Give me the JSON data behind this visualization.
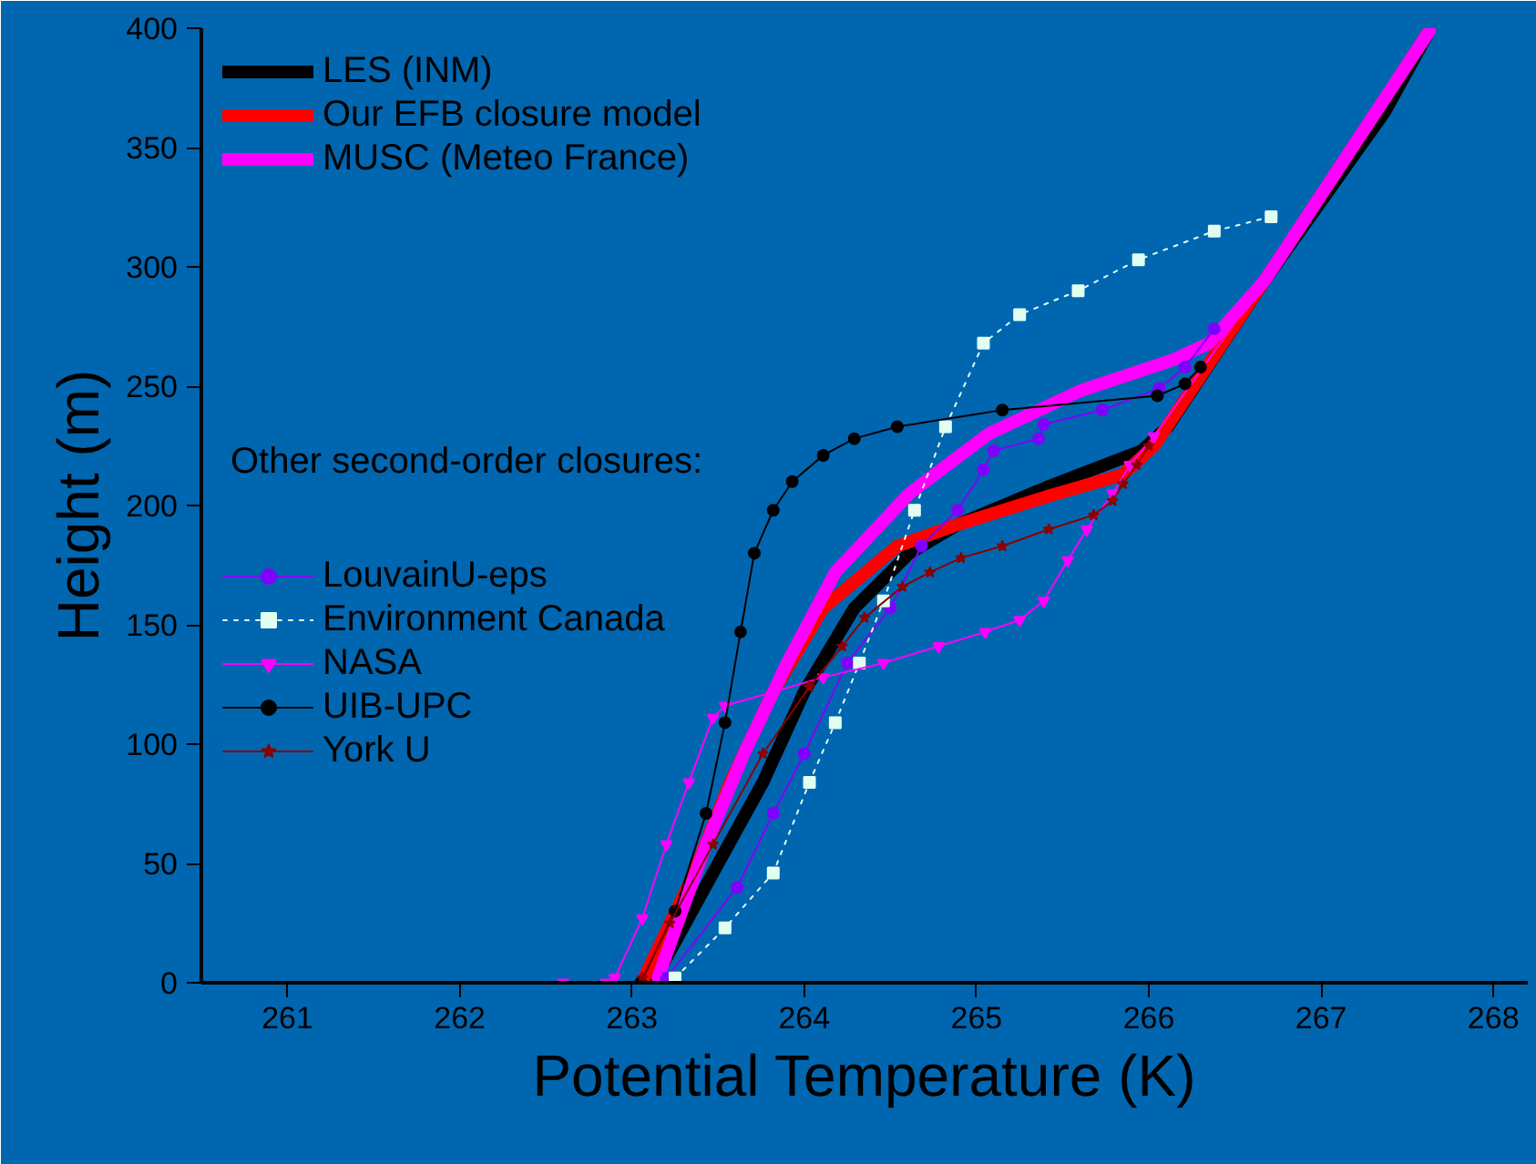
{
  "chart_data": {
    "type": "line",
    "xlabel": "Potential Temperature (K)",
    "ylabel": "Height (m)",
    "xlim": [
      260.5,
      268.2
    ],
    "ylim": [
      0,
      400
    ],
    "xticks": [
      261,
      262,
      263,
      264,
      265,
      266,
      267,
      268
    ],
    "yticks": [
      0,
      50,
      100,
      150,
      200,
      250,
      300,
      350,
      400
    ],
    "grid": false,
    "legend": "top left",
    "annotations": [
      "Other second-order closures:"
    ],
    "series": [
      {
        "name": "LES (INM)",
        "color": "#000000",
        "marker": "none",
        "line_style": "solid",
        "x": [
          263.12,
          263.47,
          263.76,
          264.0,
          264.29,
          264.61,
          264.89,
          265.42,
          265.96,
          266.11,
          266.67,
          267.37,
          267.63
        ],
        "values": [
          0,
          46,
          84,
          122,
          157,
          180,
          192,
          208,
          223,
          233,
          294,
          365,
          399
        ]
      },
      {
        "name": "Our EFB closure model",
        "color": "#ff0000",
        "marker": "none",
        "line_style": "solid",
        "x": [
          263.07,
          263.36,
          263.57,
          263.82,
          264.11,
          264.54,
          264.89,
          265.42,
          265.85,
          266.03,
          266.67,
          267.63
        ],
        "values": [
          2,
          46,
          84,
          122,
          157,
          183,
          192,
          204,
          213,
          225,
          294,
          399
        ]
      },
      {
        "name": "MUSC (Meteo France)",
        "color": "#ff00ff",
        "marker": "none",
        "line_style": "solid",
        "x": [
          263.15,
          263.43,
          263.65,
          263.9,
          264.18,
          264.61,
          265.07,
          265.6,
          266.14,
          266.35,
          266.67,
          267.63
        ],
        "values": [
          2,
          58,
          96,
          134,
          172,
          205,
          230,
          248,
          261,
          268,
          294,
          399
        ]
      },
      {
        "name": "LouvainU-eps",
        "color": "#7f00ff",
        "marker": "circle",
        "line_style": "solid",
        "x": [
          263.2,
          263.61,
          263.82,
          264.0,
          264.25,
          264.5,
          264.68,
          264.89,
          265.04,
          265.1,
          265.36,
          265.39,
          265.73,
          266.06,
          266.21,
          266.38
        ],
        "values": [
          2,
          40,
          71,
          96,
          134,
          157,
          183,
          198,
          215,
          223,
          228,
          234,
          240,
          249,
          258,
          274
        ]
      },
      {
        "name": "Environment Canada",
        "color": "#e0fff0",
        "marker": "square",
        "line_style": "dotted",
        "x": [
          263.25,
          263.54,
          263.82,
          264.03,
          264.18,
          264.32,
          264.46,
          264.64,
          264.82,
          265.04,
          265.25,
          265.59,
          265.94,
          266.38,
          266.71
        ],
        "values": [
          2,
          23,
          46,
          84,
          109,
          134,
          160,
          198,
          233,
          268,
          280,
          290,
          303,
          315,
          321
        ]
      },
      {
        "name": "NASA",
        "color": "#ff00ff",
        "marker": "triangle",
        "line_style": "solid",
        "x": [
          262.6,
          262.85,
          262.9,
          263.06,
          263.2,
          263.33,
          263.47,
          263.54,
          264.11,
          264.46,
          264.78,
          265.05,
          265.25,
          265.39,
          265.53,
          265.64,
          265.79,
          265.89,
          266.03,
          266.67,
          267.63
        ],
        "values": [
          0,
          0,
          2,
          27,
          58,
          84,
          111,
          116,
          128,
          134,
          141,
          147,
          152,
          160,
          177,
          190,
          205,
          217,
          229,
          294,
          399
        ]
      },
      {
        "name": "UIB-UPC",
        "color": "#000000",
        "marker": "circle",
        "line_style": "solid",
        "x": [
          263.05,
          263.25,
          263.43,
          263.54,
          263.63,
          263.71,
          263.82,
          263.93,
          264.11,
          264.29,
          264.54,
          265.15,
          266.05,
          266.21,
          266.3
        ],
        "values": [
          0,
          30,
          71,
          109,
          147,
          180,
          198,
          210,
          221,
          228,
          233,
          240,
          246,
          251,
          258
        ]
      },
      {
        "name": "York U",
        "color": "#8b0000",
        "marker": "star",
        "line_style": "solid",
        "x": [
          263.06,
          263.22,
          263.47,
          263.76,
          264.03,
          264.22,
          264.35,
          264.57,
          264.73,
          264.91,
          265.15,
          265.42,
          265.68,
          265.79,
          265.85,
          265.93,
          266.0
        ],
        "values": [
          2,
          25,
          58,
          96,
          124,
          141,
          153,
          166,
          172,
          178,
          183,
          190,
          196,
          202,
          209,
          217,
          225
        ]
      }
    ]
  }
}
